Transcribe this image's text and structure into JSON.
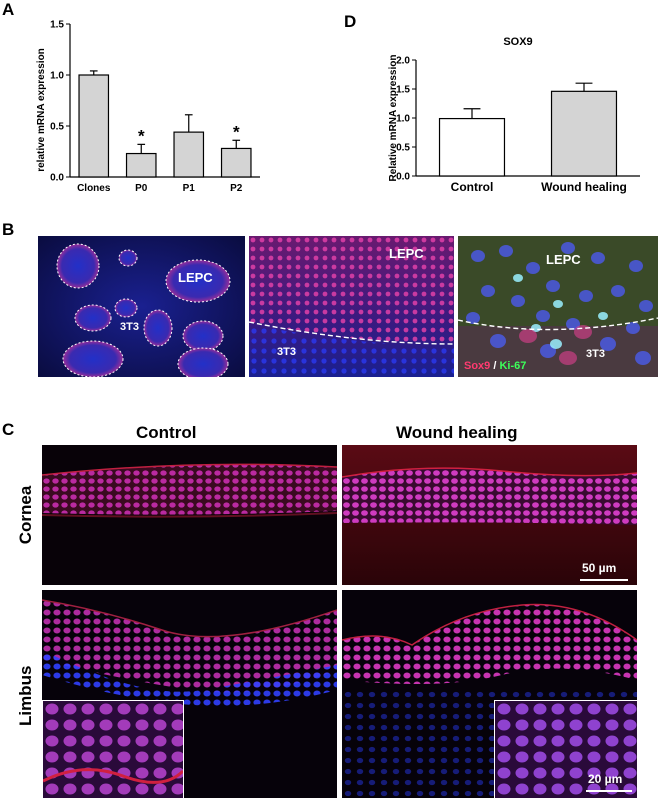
{
  "panels": {
    "A": {
      "letter": "A",
      "chart_data": {
        "type": "bar",
        "ylabel": "relative mRNA expression",
        "categories": [
          "Clones",
          "P0",
          "P1",
          "P2"
        ],
        "values": [
          1.0,
          0.23,
          0.44,
          0.28
        ],
        "errors": [
          0.04,
          0.09,
          0.17,
          0.08
        ],
        "significance": [
          "",
          "*",
          "",
          "*"
        ],
        "ylim": [
          0,
          1.5
        ],
        "yticks": [
          "0.0",
          "0.5",
          "1.0",
          "1.5"
        ],
        "bar_color": "#d4d4d4"
      }
    },
    "D": {
      "letter": "D",
      "chart_data": {
        "type": "bar",
        "title": "SOX9",
        "ylabel": "Relative mRNA expression",
        "categories": [
          "Control",
          "Wound healing"
        ],
        "values": [
          0.99,
          1.46
        ],
        "errors": [
          0.17,
          0.14
        ],
        "bar_colors": [
          "#ffffff",
          "#d4d4d4"
        ],
        "ylim": [
          0,
          2.0
        ],
        "yticks": [
          "0.0",
          "0.5",
          "1.0",
          "1.5",
          "2.0"
        ]
      }
    },
    "B": {
      "letter": "B",
      "images": [
        {
          "labels": [
            "LEPC",
            "3T3"
          ]
        },
        {
          "labels": [
            "LEPC",
            "3T3"
          ]
        },
        {
          "labels": [
            "LEPC",
            "3T3"
          ],
          "legend_sox9": "Sox9",
          "legend_sep": " / ",
          "legend_ki67": "Ki-67"
        }
      ]
    },
    "C": {
      "letter": "C",
      "col_headers": [
        "Control",
        "Wound healing"
      ],
      "row_headers": [
        "Cornea",
        "Limbus"
      ],
      "scalebars": [
        "50 µm",
        "20 µm"
      ]
    }
  },
  "colors": {
    "nuclei_blue": "#2a3cff",
    "sox9_red": "#e0306a",
    "ki67_green": "#3cff5a"
  }
}
